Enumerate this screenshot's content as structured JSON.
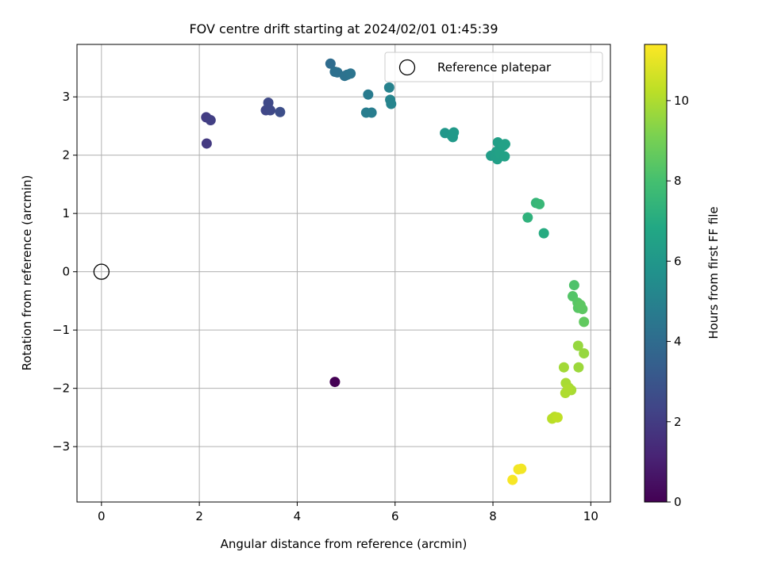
{
  "chart_data": {
    "type": "scatter",
    "title": "FOV centre drift starting at 2024/02/01 01:45:39",
    "xlabel": "Angular distance from reference (arcmin)",
    "ylabel": "Rotation from reference (arcmin)",
    "xlim": [
      -0.5,
      10.4
    ],
    "ylim": [
      -3.95,
      3.9
    ],
    "xticks": [
      0,
      2,
      4,
      6,
      8,
      10
    ],
    "xtick_labels": [
      "0",
      "2",
      "4",
      "6",
      "8",
      "10"
    ],
    "yticks": [
      -3,
      -2,
      -1,
      0,
      1,
      2,
      3
    ],
    "ytick_labels": [
      "−3",
      "−2",
      "−1",
      "0",
      "1",
      "2",
      "3"
    ],
    "grid": true,
    "legend": {
      "placement": "top-right",
      "entries": [
        "Reference platepar"
      ]
    },
    "reference_point": {
      "x": 0,
      "y": 0,
      "label": "Reference platepar"
    },
    "colorbar": {
      "label": "Hours from first FF file",
      "colormap": "viridis",
      "range": [
        0,
        11.4
      ],
      "ticks": [
        0,
        2,
        4,
        6,
        8,
        10
      ],
      "tick_labels": [
        "0",
        "2",
        "4",
        "6",
        "8",
        "10"
      ]
    },
    "points": [
      {
        "x": 4.77,
        "y": -1.89,
        "h": 0.0
      },
      {
        "x": 2.15,
        "y": 2.2,
        "h": 1.9
      },
      {
        "x": 2.14,
        "y": 2.65,
        "h": 2.0
      },
      {
        "x": 2.23,
        "y": 2.6,
        "h": 2.1
      },
      {
        "x": 3.36,
        "y": 2.77,
        "h": 2.4
      },
      {
        "x": 3.41,
        "y": 2.9,
        "h": 2.5
      },
      {
        "x": 3.45,
        "y": 2.77,
        "h": 2.5
      },
      {
        "x": 3.65,
        "y": 2.74,
        "h": 2.7
      },
      {
        "x": 4.68,
        "y": 3.57,
        "h": 4.0
      },
      {
        "x": 4.77,
        "y": 3.43,
        "h": 4.2
      },
      {
        "x": 4.82,
        "y": 3.42,
        "h": 4.2
      },
      {
        "x": 4.97,
        "y": 3.36,
        "h": 4.3
      },
      {
        "x": 5.02,
        "y": 3.38,
        "h": 4.3
      },
      {
        "x": 5.09,
        "y": 3.4,
        "h": 4.4
      },
      {
        "x": 5.45,
        "y": 3.04,
        "h": 4.7
      },
      {
        "x": 5.41,
        "y": 2.73,
        "h": 4.8
      },
      {
        "x": 5.52,
        "y": 2.73,
        "h": 4.8
      },
      {
        "x": 5.88,
        "y": 3.16,
        "h": 5.0
      },
      {
        "x": 5.9,
        "y": 2.95,
        "h": 5.1
      },
      {
        "x": 5.92,
        "y": 2.88,
        "h": 5.1
      },
      {
        "x": 7.02,
        "y": 2.38,
        "h": 6.0
      },
      {
        "x": 7.16,
        "y": 2.33,
        "h": 6.1
      },
      {
        "x": 7.18,
        "y": 2.31,
        "h": 6.1
      },
      {
        "x": 7.2,
        "y": 2.39,
        "h": 6.1
      },
      {
        "x": 7.96,
        "y": 1.99,
        "h": 6.3
      },
      {
        "x": 8.07,
        "y": 2.06,
        "h": 6.4
      },
      {
        "x": 8.1,
        "y": 2.22,
        "h": 6.4
      },
      {
        "x": 8.06,
        "y": 1.98,
        "h": 6.4
      },
      {
        "x": 8.09,
        "y": 1.93,
        "h": 6.4
      },
      {
        "x": 8.14,
        "y": 2.03,
        "h": 6.5
      },
      {
        "x": 8.21,
        "y": 2.16,
        "h": 6.5
      },
      {
        "x": 8.25,
        "y": 2.19,
        "h": 6.5
      },
      {
        "x": 8.24,
        "y": 1.98,
        "h": 6.5
      },
      {
        "x": 8.71,
        "y": 0.93,
        "h": 7.3
      },
      {
        "x": 8.88,
        "y": 1.18,
        "h": 7.5
      },
      {
        "x": 8.95,
        "y": 1.16,
        "h": 7.6
      },
      {
        "x": 9.04,
        "y": 0.66,
        "h": 7.0
      },
      {
        "x": 9.66,
        "y": -0.23,
        "h": 8.2
      },
      {
        "x": 9.63,
        "y": -0.42,
        "h": 8.3
      },
      {
        "x": 9.73,
        "y": -0.53,
        "h": 8.4
      },
      {
        "x": 9.74,
        "y": -0.62,
        "h": 8.4
      },
      {
        "x": 9.79,
        "y": -0.57,
        "h": 8.5
      },
      {
        "x": 9.83,
        "y": -0.64,
        "h": 8.5
      },
      {
        "x": 9.86,
        "y": -0.86,
        "h": 8.6
      },
      {
        "x": 9.74,
        "y": -1.27,
        "h": 9.6
      },
      {
        "x": 9.86,
        "y": -1.4,
        "h": 9.6
      },
      {
        "x": 9.75,
        "y": -1.64,
        "h": 9.7
      },
      {
        "x": 9.45,
        "y": -1.64,
        "h": 9.8
      },
      {
        "x": 9.49,
        "y": -1.91,
        "h": 9.9
      },
      {
        "x": 9.55,
        "y": -1.99,
        "h": 9.9
      },
      {
        "x": 9.6,
        "y": -2.03,
        "h": 9.9
      },
      {
        "x": 9.48,
        "y": -2.08,
        "h": 10.0
      },
      {
        "x": 9.53,
        "y": -2.02,
        "h": 10.0
      },
      {
        "x": 9.21,
        "y": -2.52,
        "h": 10.2
      },
      {
        "x": 9.26,
        "y": -2.49,
        "h": 10.2
      },
      {
        "x": 9.32,
        "y": -2.5,
        "h": 10.3
      },
      {
        "x": 8.52,
        "y": -3.39,
        "h": 11.2
      },
      {
        "x": 8.58,
        "y": -3.38,
        "h": 11.2
      },
      {
        "x": 8.4,
        "y": -3.57,
        "h": 11.3
      }
    ]
  }
}
